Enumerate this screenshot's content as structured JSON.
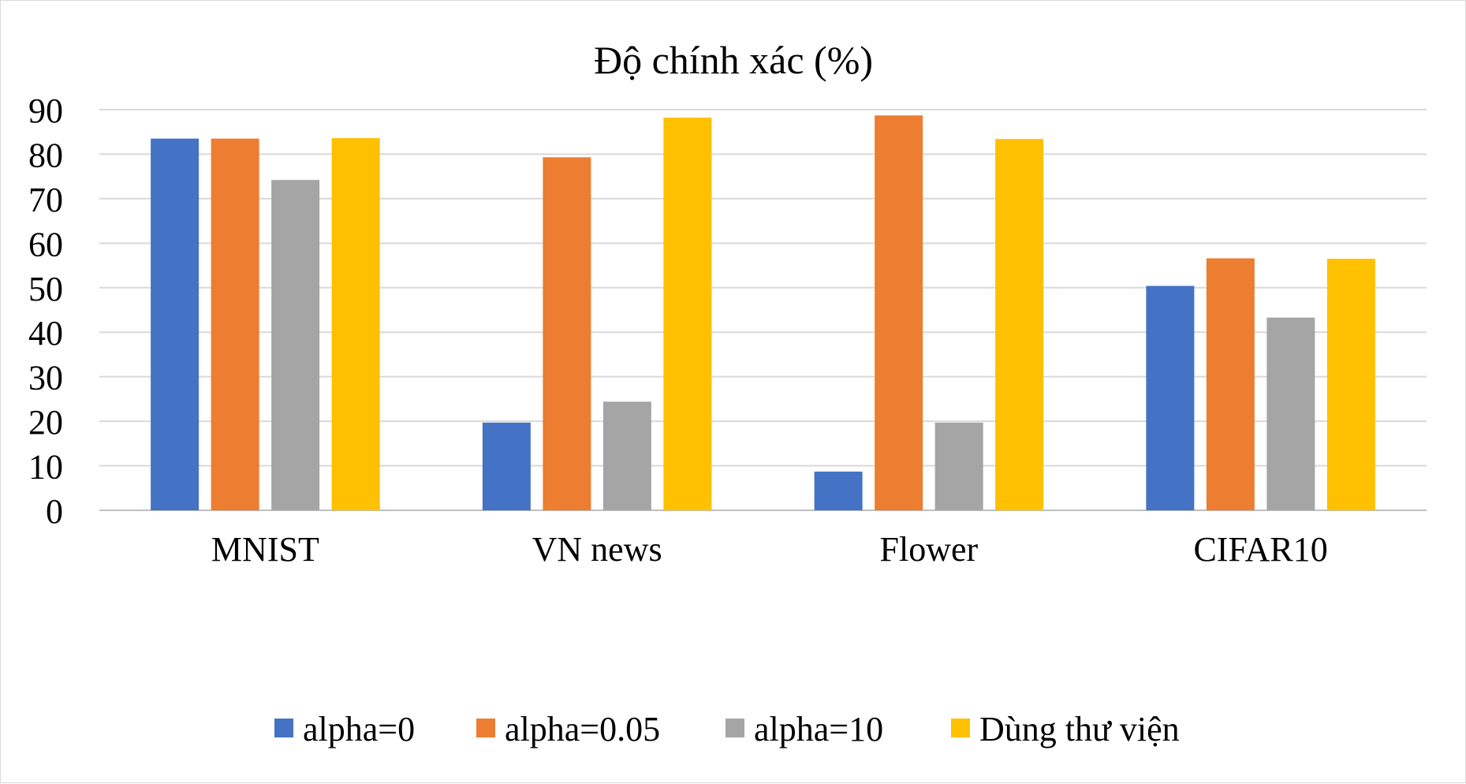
{
  "chart_data": {
    "type": "bar",
    "title": "Độ chính xác (%)",
    "xlabel": "",
    "ylabel": "",
    "ylim": [
      0,
      90
    ],
    "yticks": [
      0,
      10,
      20,
      30,
      40,
      50,
      60,
      70,
      80,
      90
    ],
    "categories": [
      "MNIST",
      "VN news",
      "Flower",
      "CIFAR10"
    ],
    "series": [
      {
        "name": "alpha=0",
        "color": "#4472C4",
        "values": [
          83.5,
          19.7,
          8.7,
          50.4
        ]
      },
      {
        "name": "alpha=0.05",
        "color": "#ED7D31",
        "values": [
          83.5,
          79.3,
          88.7,
          56.6
        ]
      },
      {
        "name": "alpha=10",
        "color": "#A5A5A5",
        "values": [
          74.2,
          24.4,
          19.7,
          43.3
        ]
      },
      {
        "name": "Dùng thư viện",
        "color": "#FFC000",
        "values": [
          83.6,
          88.2,
          83.4,
          56.5
        ]
      }
    ],
    "grid": true,
    "legend_position": "bottom"
  }
}
